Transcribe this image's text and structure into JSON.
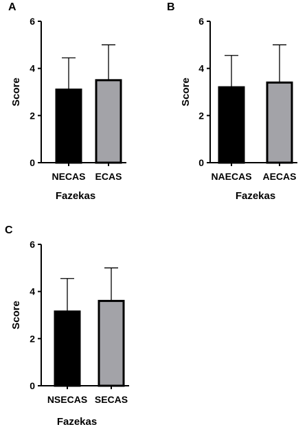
{
  "chart_data": [
    {
      "type": "bar",
      "panel": "A",
      "categories": [
        "NECAS",
        "ECAS"
      ],
      "values": [
        3.1,
        3.5
      ],
      "errors": [
        1.35,
        1.5
      ],
      "bar_colors": [
        "#000000",
        "#a3a3a8"
      ],
      "xlabel": "Fazekas",
      "ylabel": "Score",
      "ylim": [
        0,
        6
      ],
      "yticks": [
        "0",
        "2",
        "4",
        "6"
      ],
      "grid": false
    },
    {
      "type": "bar",
      "panel": "B",
      "categories": [
        "NAECAS",
        "AECAS"
      ],
      "values": [
        3.2,
        3.4
      ],
      "errors": [
        1.35,
        1.6
      ],
      "bar_colors": [
        "#000000",
        "#a3a3a8"
      ],
      "xlabel": "Fazekas",
      "ylabel": "Score",
      "ylim": [
        0,
        6
      ],
      "yticks": [
        "0",
        "2",
        "4",
        "6"
      ],
      "grid": false
    },
    {
      "type": "bar",
      "panel": "C",
      "categories": [
        "NSECAS",
        "SECAS"
      ],
      "values": [
        3.15,
        3.6
      ],
      "errors": [
        1.4,
        1.4
      ],
      "bar_colors": [
        "#000000",
        "#a3a3a8"
      ],
      "xlabel": "Fazekas",
      "ylabel": "Score",
      "ylim": [
        0,
        6
      ],
      "yticks": [
        "0",
        "2",
        "4",
        "6"
      ],
      "grid": false
    }
  ]
}
